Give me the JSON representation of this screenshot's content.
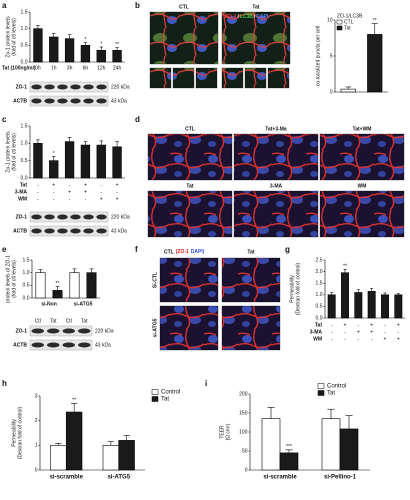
{
  "panel_labels": [
    "a",
    "b",
    "c",
    "d",
    "e",
    "f",
    "g",
    "h",
    "i"
  ],
  "chart_data": [
    {
      "type": "bar",
      "ylabel": [
        "Zo-1 protein levels",
        "(fold of ctl levels)"
      ],
      "xlabel": "Tat (100ng/ml)",
      "categories": [
        "0h",
        "1h",
        "3h",
        "6h",
        "12h",
        "24h"
      ],
      "values": [
        1.0,
        0.75,
        0.7,
        0.5,
        0.35,
        0.35
      ],
      "errors": [
        0.1,
        0.1,
        0.12,
        0.08,
        0.1,
        0.08
      ],
      "significance": [
        null,
        null,
        null,
        "*",
        "*",
        "**"
      ],
      "color": "#1a1a1a",
      "ylim": [
        0,
        1.5
      ],
      "yticks": [
        {
          "value": 0,
          "label": "0.0"
        },
        {
          "value": 0.5,
          "label": "0.5"
        },
        {
          "value": 1,
          "label": "1.0"
        },
        {
          "value": 1.5,
          "label": "1.5"
        }
      ]
    },
    {
      "type": "bar",
      "ylabel": [
        "co-localized puncta per cell"
      ],
      "legend_title": "ZO-1/LC3B",
      "categories": [
        "CTL",
        "Tat"
      ],
      "values": [
        0.4,
        8
      ],
      "errors": [
        0.3,
        1.5
      ],
      "significance": [
        null,
        "**"
      ],
      "colors": [
        "#ffffff",
        "#1a1a1a"
      ],
      "ylim": [
        0,
        10
      ],
      "yticks": [
        0,
        5,
        10
      ],
      "legend": "top-left"
    },
    {
      "type": "bar",
      "ylabel": [
        "Zo-1 protein levels",
        "(fold of ctl levels)"
      ],
      "values": [
        1.0,
        0.5,
        1.05,
        0.95,
        0.95,
        0.9
      ],
      "errors": [
        0.1,
        0.12,
        0.12,
        0.1,
        0.12,
        0.15
      ],
      "significance": [
        null,
        "*",
        null,
        null,
        null,
        null
      ],
      "color": "#1a1a1a",
      "ylim": [
        0,
        1.5
      ],
      "yticks": [
        {
          "value": 0,
          "label": "0.0"
        },
        {
          "value": 0.5,
          "label": "0.5"
        },
        {
          "value": 1,
          "label": "1.0"
        },
        {
          "value": 1.5,
          "label": "1.5"
        }
      ],
      "treatments": [
        {
          "name": "Tat",
          "signs": [
            "-",
            "+",
            "-",
            "+",
            "-",
            "+"
          ]
        },
        {
          "name": "3-MA",
          "signs": [
            "-",
            "-",
            "+",
            "+",
            "-",
            "-"
          ]
        },
        {
          "name": "WM",
          "signs": [
            "-",
            "-",
            "-",
            "-",
            "+",
            "+"
          ]
        }
      ]
    },
    {
      "type": "bar",
      "ylabel": [
        "protein levels of ZO-1",
        "(fold of ctl levels)"
      ],
      "groups": [
        "si-Non",
        "si-ATG5"
      ],
      "values": [
        1.0,
        0.3,
        1.0,
        1.0
      ],
      "errors": [
        0.12,
        0.15,
        0.15,
        0.15
      ],
      "significance": [
        null,
        "**",
        null,
        null
      ],
      "colors": [
        "#ffffff",
        "#1a1a1a",
        "#ffffff",
        "#1a1a1a"
      ],
      "ylim": [
        0,
        1.5
      ],
      "yticks": [
        {
          "value": 0,
          "label": "0.0"
        },
        {
          "value": 0.5,
          "label": "0.5"
        },
        {
          "value": 1,
          "label": "1.0"
        },
        {
          "value": 1.5,
          "label": "1.5"
        }
      ]
    },
    {
      "type": "bar",
      "ylabel": [
        "Permeability",
        "(Dextran fold of control)"
      ],
      "values": [
        1.0,
        1.95,
        1.1,
        1.15,
        1.0,
        1.0
      ],
      "errors": [
        0.1,
        0.15,
        0.12,
        0.12,
        0.08,
        0.05
      ],
      "significance": [
        null,
        "**",
        null,
        null,
        null,
        null
      ],
      "color": "#1a1a1a",
      "ylim": [
        0,
        2.5
      ],
      "yticks": [
        {
          "value": 0,
          "label": "0.0"
        },
        {
          "value": 0.5,
          "label": "0.5"
        },
        {
          "value": 1,
          "label": "1.0"
        },
        {
          "value": 1.5,
          "label": "1.5"
        },
        {
          "value": 2,
          "label": "2.0"
        },
        {
          "value": 2.5,
          "label": "2.5"
        }
      ],
      "treatments": [
        {
          "name": "Tat",
          "signs": [
            "-",
            "+",
            "-",
            "+",
            "-",
            "+"
          ]
        },
        {
          "name": "3-MA",
          "signs": [
            "-",
            "-",
            "+",
            "+",
            "-",
            "-"
          ]
        },
        {
          "name": "WM",
          "signs": [
            "-",
            "-",
            "-",
            "-",
            "+",
            "+"
          ]
        }
      ]
    },
    {
      "type": "grouped_bar",
      "ylabel": [
        "Permeability",
        "(Dextran fold of control)"
      ],
      "categories": [
        "si-scramble",
        "si-ATG5"
      ],
      "series": [
        {
          "name": "Control",
          "color": "#ffffff",
          "values": [
            1.0,
            1.0
          ],
          "errors": [
            0.08,
            0.15
          ]
        },
        {
          "name": "Tat",
          "color": "#1a1a1a",
          "values": [
            2.35,
            1.2
          ],
          "errors": [
            0.35,
            0.2
          ],
          "significance": [
            "**",
            null
          ]
        }
      ],
      "ylim": [
        0,
        3
      ],
      "yticks": [
        0,
        1,
        2,
        3
      ],
      "legend": "top-right"
    },
    {
      "type": "grouped_bar",
      "ylabel": [
        "TEER",
        "(Ω.cm²)"
      ],
      "categories": [
        "si-scramble",
        "si-Pellino-1"
      ],
      "series": [
        {
          "name": "Control",
          "color": "#ffffff",
          "values": [
            135,
            135
          ],
          "errors": [
            30,
            25
          ]
        },
        {
          "name": "Tat",
          "color": "#1a1a1a",
          "values": [
            45,
            108
          ],
          "errors": [
            8,
            35
          ],
          "significance": [
            "***",
            null
          ]
        }
      ],
      "ylim": [
        0,
        200
      ],
      "yticks": [
        0,
        50,
        100,
        150,
        200
      ],
      "legend": "top-right"
    }
  ],
  "blots": [
    {
      "bands": [
        {
          "name": "ZO-1",
          "size": "220 kDa"
        },
        {
          "name": "ACTB",
          "size": "43 kDa"
        }
      ]
    },
    {
      "bands": [
        {
          "name": "ZO-1",
          "size": "220 kDa"
        },
        {
          "name": "ACTB",
          "size": "43 kDa"
        }
      ]
    },
    {
      "lanes": [
        "Ctl",
        "Tat",
        "Ctl",
        "Tat"
      ],
      "bands": [
        {
          "name": "ZO-1",
          "size": "220 kDa"
        },
        {
          "name": "ACTB",
          "size": "43 kDa"
        }
      ]
    }
  ],
  "micrographs": {
    "b": {
      "labels": [
        "CTL",
        "Tat"
      ],
      "stain": [
        "ZO-1",
        "LC3B",
        "DAPI"
      ],
      "stain_separator": "/",
      "stain_colors": [
        "#ff3b3b",
        "#3fd43f",
        "#5a86ff"
      ]
    },
    "d": {
      "labels": [
        "CTL",
        "Tat+3-Ma",
        "Tat+WM",
        "Tat",
        "3-MA",
        "WM"
      ]
    },
    "f": {
      "labels": [
        "CTL",
        "Tat"
      ],
      "stain": [
        "(ZO-1",
        "DAPI)"
      ],
      "stain_colors": [
        "#e02020",
        "#3050e0"
      ],
      "rows": [
        "Si-CTL",
        "si-ATG5"
      ]
    }
  }
}
